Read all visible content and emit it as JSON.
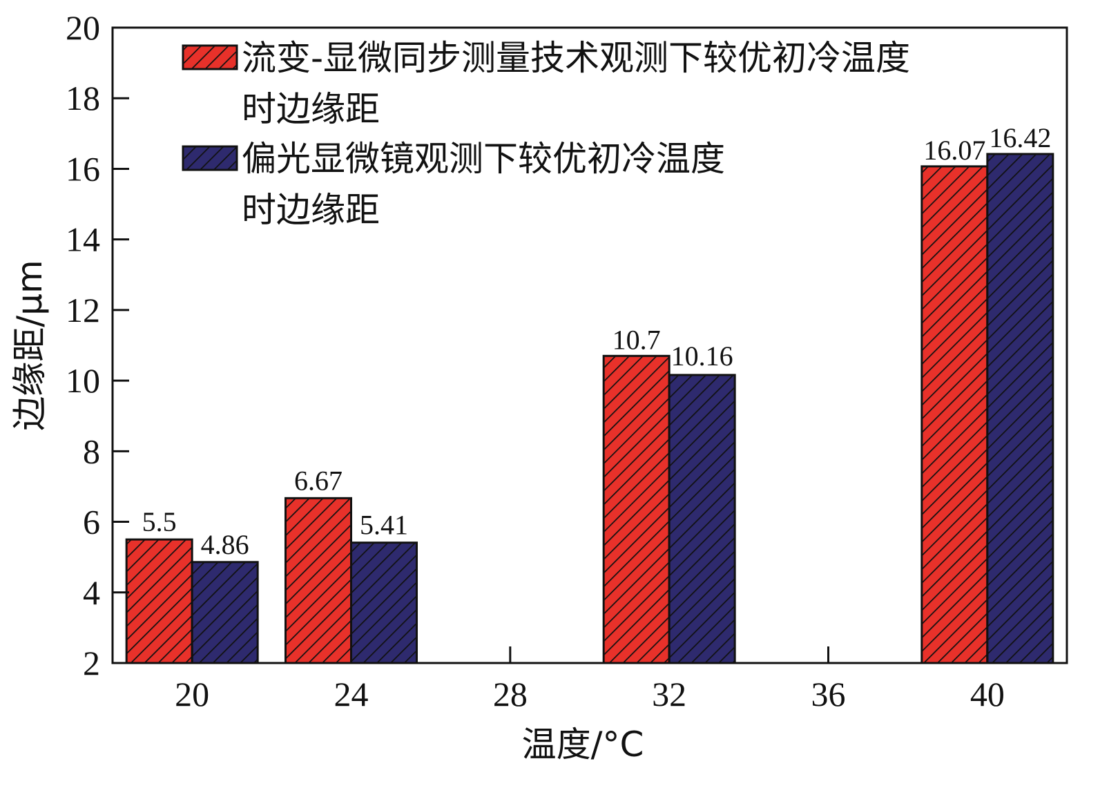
{
  "chart_data": {
    "type": "bar",
    "categories": [
      "20",
      "24",
      "28",
      "32",
      "36",
      "40"
    ],
    "series": [
      {
        "name": "流变-显微同步测量技术观测下较优初冷温度时边缘距",
        "name_lines": [
          "流变-显微同步测量技术观测下较优初冷温度",
          "时边缘距"
        ],
        "values": [
          5.5,
          6.67,
          null,
          10.7,
          null,
          16.07
        ],
        "labels": [
          "5.5",
          "6.67",
          null,
          "10.7",
          null,
          "16.07"
        ],
        "color": "#e8312a"
      },
      {
        "name": "偏光显微镜观测下较优初冷温度时边缘距",
        "name_lines": [
          "偏光显微镜观测下较优初冷温度",
          "时边缘距"
        ],
        "values": [
          4.86,
          5.41,
          null,
          10.16,
          null,
          16.42
        ],
        "labels": [
          "4.86",
          "5.41",
          null,
          "10.16",
          null,
          "16.42"
        ],
        "color": "#2e2a6e"
      }
    ],
    "xlabel": "温度/°C",
    "ylabel": "边缘距/μm",
    "ylim": [
      2,
      20
    ],
    "yticks": [
      2,
      4,
      6,
      8,
      10,
      12,
      14,
      16,
      18,
      20
    ],
    "hatch": "diagonal",
    "grid": false,
    "legend_position": "top-left"
  }
}
